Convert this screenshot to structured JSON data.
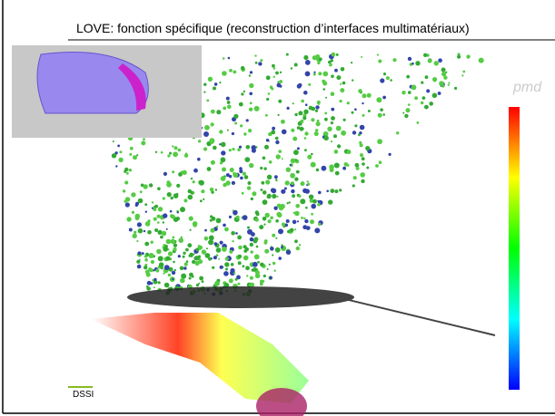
{
  "header": {
    "title": "LOVE:  fonction spécifique (reconstruction d’interfaces multimatériaux)"
  },
  "watermark": "pmd",
  "footer": {
    "label": "DSSI"
  }
}
